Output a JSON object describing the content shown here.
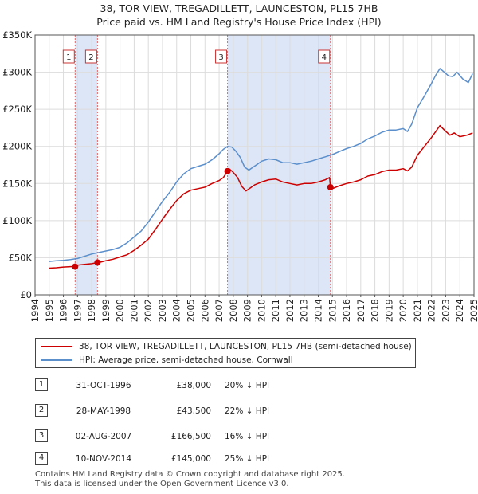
{
  "title": "38, TOR VIEW, TREGADILLETT, LAUNCESTON, PL15 7HB",
  "subtitle": "Price paid vs. HM Land Registry's House Price Index (HPI)",
  "colors": {
    "price": "#cc0000",
    "hpi": "#5b8fcc",
    "band": "#dde6f7",
    "grid": "#dcdcdc"
  },
  "chart_data": {
    "type": "line",
    "xlim": [
      1994,
      2025
    ],
    "ylim": [
      0,
      350000
    ],
    "y_ticks": [
      0,
      50000,
      100000,
      150000,
      200000,
      250000,
      300000,
      350000
    ],
    "y_tick_labels": [
      "£0",
      "£50K",
      "£100K",
      "£150K",
      "£200K",
      "£250K",
      "£300K",
      "£350K"
    ],
    "x_ticks": [
      "1994",
      "1995",
      "1996",
      "1997",
      "1998",
      "1999",
      "2000",
      "2001",
      "2002",
      "2003",
      "2004",
      "2005",
      "2006",
      "2007",
      "2008",
      "2009",
      "2010",
      "2011",
      "2012",
      "2013",
      "2014",
      "2015",
      "2016",
      "2017",
      "2018",
      "2019",
      "2020",
      "2021",
      "2022",
      "2023",
      "2024",
      "2025"
    ],
    "shaded_ranges": [
      [
        1996.83,
        1998.41
      ],
      [
        2007.59,
        2014.86
      ]
    ],
    "series": [
      {
        "name": "38, TOR VIEW, TREGADILLETT, LAUNCESTON, PL15 7HB (semi-detached house)",
        "x": [
          1995.0,
          1995.5,
          1996.0,
          1996.5,
          1996.83,
          1997.0,
          1997.5,
          1998.0,
          1998.41,
          1998.7,
          1999.0,
          1999.5,
          2000.0,
          2000.5,
          2001.0,
          2001.5,
          2002.0,
          2002.5,
          2003.0,
          2003.5,
          2004.0,
          2004.5,
          2005.0,
          2005.5,
          2006.0,
          2006.5,
          2007.0,
          2007.3,
          2007.59,
          2007.7,
          2008.0,
          2008.3,
          2008.6,
          2008.9,
          2009.2,
          2009.5,
          2010.0,
          2010.5,
          2011.0,
          2011.5,
          2012.0,
          2012.5,
          2013.0,
          2013.5,
          2014.0,
          2014.5,
          2014.8,
          2014.86,
          2015.0,
          2015.5,
          2016.0,
          2016.5,
          2017.0,
          2017.5,
          2018.0,
          2018.5,
          2019.0,
          2019.5,
          2020.0,
          2020.3,
          2020.6,
          2021.0,
          2021.5,
          2022.0,
          2022.3,
          2022.6,
          2022.9,
          2023.3,
          2023.6,
          2024.0,
          2024.5,
          2024.9
        ],
        "values": [
          36000,
          36500,
          37500,
          38000,
          38000,
          40000,
          41000,
          42000,
          43500,
          44500,
          46000,
          48000,
          51000,
          54000,
          60000,
          67000,
          75000,
          88000,
          102000,
          115000,
          127000,
          136000,
          141000,
          143000,
          145000,
          150000,
          154000,
          158000,
          166500,
          170000,
          165000,
          158000,
          146000,
          140000,
          144000,
          148000,
          152000,
          155000,
          156000,
          152000,
          150000,
          148000,
          150000,
          150000,
          152000,
          155000,
          158000,
          145000,
          143000,
          147000,
          150000,
          152000,
          155000,
          160000,
          162000,
          166000,
          168000,
          168000,
          170000,
          167000,
          172000,
          188000,
          200000,
          212000,
          220000,
          228000,
          222000,
          215000,
          218000,
          213000,
          215000,
          218000
        ]
      },
      {
        "name": "HPI: Average price, semi-detached house, Cornwall",
        "x": [
          1995.0,
          1995.5,
          1996.0,
          1996.5,
          1997.0,
          1997.5,
          1998.0,
          1998.5,
          1999.0,
          1999.5,
          2000.0,
          2000.5,
          2001.0,
          2001.5,
          2002.0,
          2002.5,
          2003.0,
          2003.5,
          2004.0,
          2004.5,
          2005.0,
          2005.5,
          2006.0,
          2006.5,
          2007.0,
          2007.3,
          2007.6,
          2007.9,
          2008.2,
          2008.5,
          2008.8,
          2009.1,
          2009.4,
          2009.7,
          2010.0,
          2010.5,
          2011.0,
          2011.5,
          2012.0,
          2012.5,
          2013.0,
          2013.5,
          2014.0,
          2014.5,
          2015.0,
          2015.5,
          2016.0,
          2016.5,
          2017.0,
          2017.5,
          2018.0,
          2018.5,
          2019.0,
          2019.5,
          2020.0,
          2020.3,
          2020.6,
          2021.0,
          2021.5,
          2022.0,
          2022.3,
          2022.6,
          2022.9,
          2023.2,
          2023.5,
          2023.8,
          2024.2,
          2024.6,
          2024.9
        ],
        "values": [
          45000,
          46000,
          46500,
          47500,
          49000,
          52000,
          55000,
          57000,
          59000,
          61000,
          64000,
          70000,
          78000,
          86000,
          98000,
          112000,
          126000,
          138000,
          152000,
          163000,
          170000,
          173000,
          176000,
          182000,
          190000,
          196000,
          200000,
          199000,
          193000,
          185000,
          172000,
          168000,
          172000,
          176000,
          180000,
          183000,
          182000,
          178000,
          178000,
          176000,
          178000,
          180000,
          183000,
          186000,
          189000,
          193000,
          197000,
          200000,
          204000,
          210000,
          214000,
          219000,
          222000,
          222000,
          224000,
          220000,
          230000,
          252000,
          268000,
          285000,
          296000,
          305000,
          300000,
          295000,
          294000,
          300000,
          291000,
          286000,
          298000
        ]
      }
    ],
    "sales": [
      {
        "label": "1",
        "x": 1996.83,
        "value": 38000
      },
      {
        "label": "2",
        "x": 1998.41,
        "value": 43500
      },
      {
        "label": "3",
        "x": 2007.59,
        "value": 166500
      },
      {
        "label": "4",
        "x": 2014.86,
        "value": 145000
      }
    ]
  },
  "legend": {
    "price_label": "38, TOR VIEW, TREGADILLETT, LAUNCESTON, PL15 7HB (semi-detached house)",
    "hpi_label": "HPI: Average price, semi-detached house, Cornwall"
  },
  "transactions": [
    {
      "num": "1",
      "date": "31-OCT-1996",
      "price": "£38,000",
      "hpi": "20% ↓ HPI"
    },
    {
      "num": "2",
      "date": "28-MAY-1998",
      "price": "£43,500",
      "hpi": "22% ↓ HPI"
    },
    {
      "num": "3",
      "date": "02-AUG-2007",
      "price": "£166,500",
      "hpi": "16% ↓ HPI"
    },
    {
      "num": "4",
      "date": "10-NOV-2014",
      "price": "£145,000",
      "hpi": "25% ↓ HPI"
    }
  ],
  "footer": {
    "line1": "Contains HM Land Registry data © Crown copyright and database right 2025.",
    "line2": "This data is licensed under the Open Government Licence v3.0."
  }
}
